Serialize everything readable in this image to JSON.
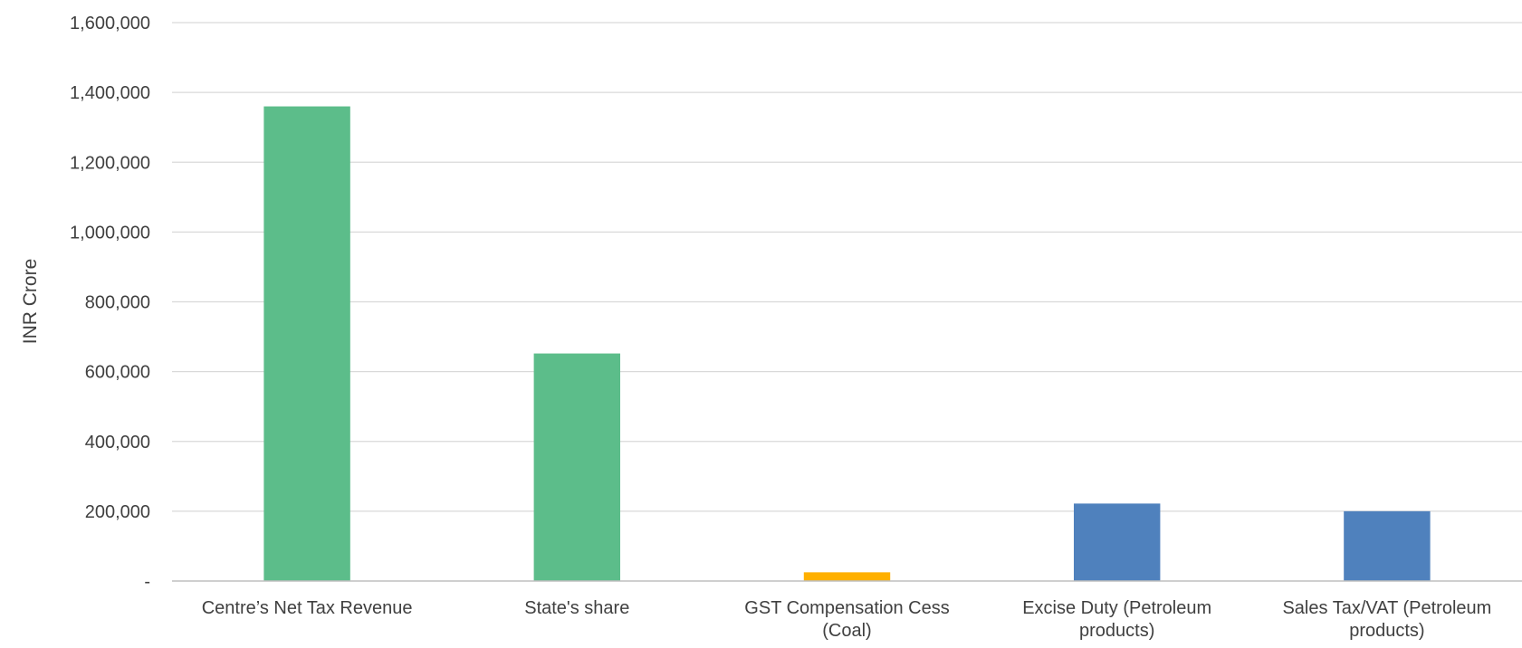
{
  "chart_data": {
    "type": "bar",
    "title": "",
    "xlabel": "",
    "ylabel": "INR Crore",
    "ylim": [
      0,
      1600000
    ],
    "y_ticks": [
      0,
      200000,
      400000,
      600000,
      800000,
      1000000,
      1200000,
      1400000,
      1600000
    ],
    "y_tick_labels": [
      "-",
      "200,000",
      "400,000",
      "600,000",
      "800,000",
      "1,000,000",
      "1,200,000",
      "1,400,000",
      "1,600,000"
    ],
    "grid": true,
    "legend": "none",
    "categories": [
      [
        "Centre’s Net Tax Revenue"
      ],
      [
        "State's share"
      ],
      [
        "GST Compensation Cess",
        "(Coal)"
      ],
      [
        "Excise Duty (Petroleum",
        "products)"
      ],
      [
        "Sales Tax/VAT (Petroleum",
        "products)"
      ]
    ],
    "values": [
      1360000,
      652000,
      25000,
      222000,
      200000
    ],
    "bar_colors": [
      "#5cbd8a",
      "#5cbd8a",
      "#ffb000",
      "#4f81bd",
      "#4f81bd"
    ],
    "gridline_color": "#d9d9d9",
    "axis_line_color": "#bfbfbf",
    "text_color": "#404040"
  }
}
